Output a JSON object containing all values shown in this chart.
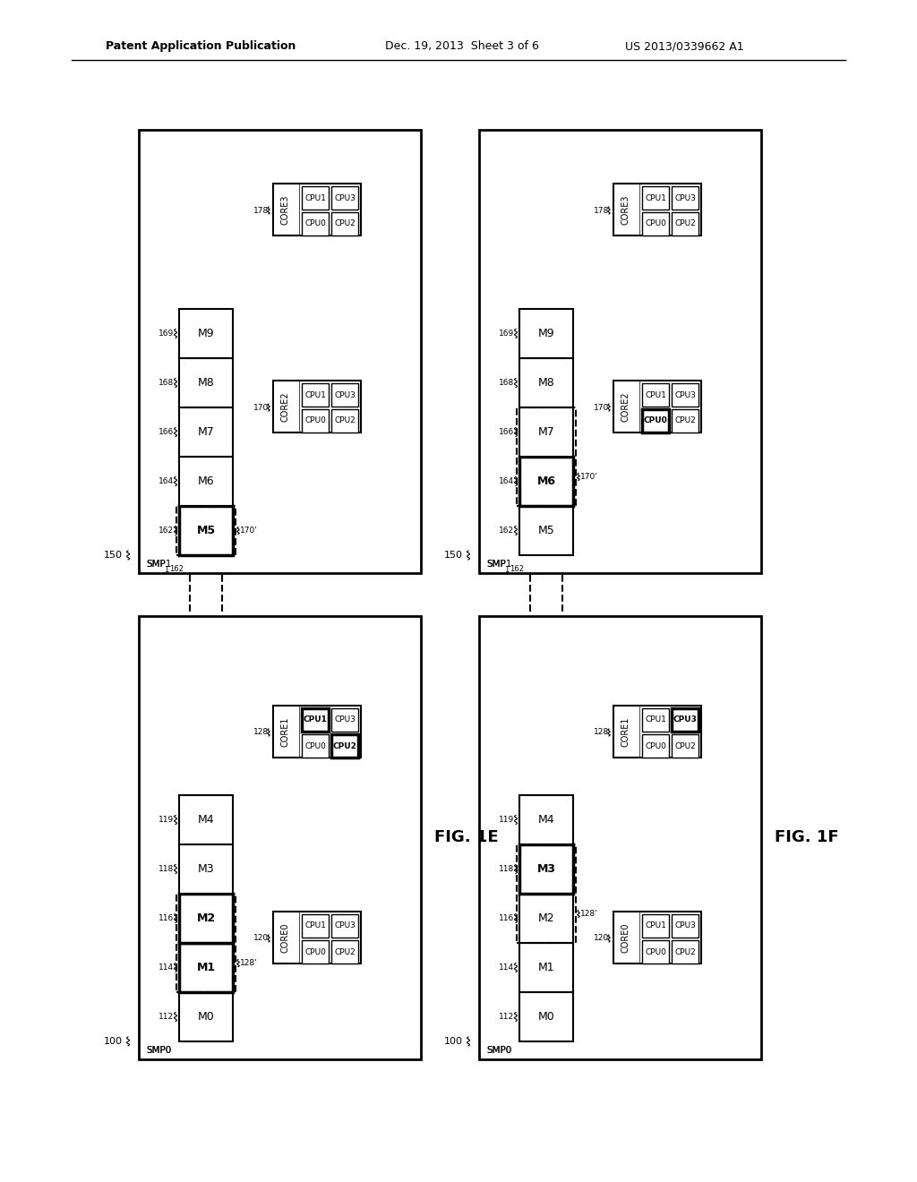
{
  "header_left": "Patent Application Publication",
  "header_center": "Dec. 19, 2013  Sheet 3 of 6",
  "header_right": "US 2013/0339662 A1",
  "fig_label_E": "FIG. 1E",
  "fig_label_F": "FIG. 1F",
  "bg_color": "#ffffff"
}
